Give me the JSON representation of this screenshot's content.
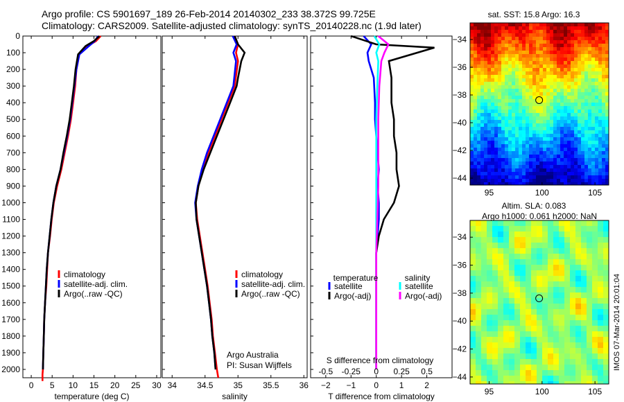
{
  "header": {
    "line1": "Argo profile: CS 5901697_189 26-Feb-2014 20140302_233 38.372S 99.725E",
    "line2": "Climatology: CARS2009. Satellite-adjusted climatology: synTS_20140228.nc (1.9d later)"
  },
  "colors": {
    "climatology": "#ff0000",
    "satellite": "#0000ff",
    "argo": "#000000",
    "sal_satellite": "#00ffff",
    "sal_argo": "#ff00ff"
  },
  "chart_data": [
    {
      "type": "line",
      "id": "temperature",
      "xlabel": "temperature (deg C)",
      "ylabel": "",
      "xlim": [
        -2,
        31
      ],
      "ylim": [
        0,
        2050
      ],
      "y_reversed": true,
      "xticks": [
        0,
        5,
        10,
        15,
        20,
        25,
        30
      ],
      "yticks": [
        0,
        100,
        200,
        300,
        400,
        500,
        600,
        700,
        800,
        900,
        1000,
        1100,
        1200,
        1300,
        1400,
        1500,
        1600,
        1700,
        1800,
        1900,
        2000
      ],
      "legend": [
        "climatology",
        "satellite-adj. clim.",
        "Argo(..raw -QC)"
      ],
      "series": [
        {
          "name": "climatology",
          "color": "climatology",
          "x": [
            16.6,
            15.5,
            13.5,
            11.5,
            10.8,
            10.5,
            10.0,
            9.5,
            8.8,
            8.0,
            7.2,
            6.2,
            5.4,
            4.9,
            4.5,
            4.0,
            3.8,
            3.6,
            3.3,
            3.1,
            3.0,
            2.9,
            2.8,
            2.7,
            2.7
          ],
          "y": [
            0,
            30,
            60,
            110,
            200,
            300,
            400,
            500,
            600,
            700,
            800,
            900,
            1000,
            1100,
            1200,
            1300,
            1400,
            1500,
            1600,
            1700,
            1800,
            1900,
            2000,
            2030,
            2070
          ]
        },
        {
          "name": "satellite-adj. clim.",
          "color": "satellite",
          "x": [
            16.0,
            15.2,
            13.8,
            11.5,
            10.8,
            10.3,
            9.8,
            9.3,
            8.6,
            7.8,
            7.0,
            6.0,
            5.3,
            4.8,
            4.4,
            4.0,
            3.7,
            3.5,
            3.3,
            3.1,
            3.0,
            2.9,
            2.8
          ],
          "y": [
            0,
            30,
            60,
            110,
            200,
            300,
            400,
            500,
            600,
            700,
            800,
            900,
            1000,
            1100,
            1200,
            1300,
            1400,
            1500,
            1600,
            1700,
            1800,
            1900,
            2000
          ]
        },
        {
          "name": "Argo(..raw -QC)",
          "color": "argo",
          "x": [
            16.3,
            15.0,
            13.0,
            11.2,
            10.6,
            10.2,
            9.7,
            9.2,
            8.5,
            7.7,
            7.0,
            6.0,
            5.3,
            4.8,
            4.4,
            4.0,
            3.7,
            3.5,
            3.3,
            3.1,
            3.0,
            2.9,
            2.8
          ],
          "y": [
            0,
            30,
            60,
            110,
            200,
            300,
            400,
            500,
            600,
            700,
            800,
            900,
            1000,
            1100,
            1200,
            1300,
            1400,
            1500,
            1600,
            1700,
            1800,
            1900,
            2000
          ]
        }
      ]
    },
    {
      "type": "line",
      "id": "salinity",
      "xlabel": "salinity",
      "ylabel": "",
      "xlim": [
        33.85,
        36.05
      ],
      "ylim": [
        0,
        2050
      ],
      "y_reversed": true,
      "xticks": [
        34,
        34.5,
        35,
        35.5,
        36
      ],
      "xticklabels": [
        "34",
        "34.5",
        "35",
        "35.5",
        "36"
      ],
      "legend": [
        "climatology",
        "satellite-adj. clim.",
        "Argo(..raw -QC)"
      ],
      "annotation": [
        "Argo Australia",
        "PI: Susan Wijffels"
      ],
      "series": [
        {
          "name": "climatology",
          "color": "climatology",
          "x": [
            34.95,
            35.0,
            34.97,
            35.0,
            34.95,
            34.85,
            34.75,
            34.65,
            34.55,
            34.46,
            34.4,
            34.36,
            34.38,
            34.42,
            34.46,
            34.5,
            34.54,
            34.57,
            34.6,
            34.62,
            34.65,
            34.68,
            34.7
          ],
          "y": [
            0,
            50,
            100,
            150,
            300,
            400,
            500,
            600,
            700,
            800,
            900,
            1000,
            1100,
            1200,
            1300,
            1400,
            1500,
            1600,
            1700,
            1800,
            1900,
            2000,
            2050
          ]
        },
        {
          "name": "satellite-adj. clim.",
          "color": "satellite",
          "x": [
            34.92,
            34.98,
            34.93,
            34.97,
            34.93,
            34.83,
            34.73,
            34.63,
            34.53,
            34.45,
            34.39,
            34.35,
            34.37,
            34.41,
            34.45,
            34.49,
            34.53,
            34.56,
            34.59,
            34.61,
            34.64,
            34.66
          ],
          "y": [
            0,
            50,
            100,
            150,
            300,
            400,
            500,
            600,
            700,
            800,
            900,
            1000,
            1100,
            1200,
            1300,
            1400,
            1500,
            1600,
            1700,
            1800,
            1900,
            2000
          ]
        },
        {
          "name": "Argo(..raw -QC)",
          "color": "argo",
          "x": [
            34.95,
            35.0,
            35.1,
            35.05,
            35.0,
            34.98,
            34.88,
            34.78,
            34.68,
            34.58,
            34.48,
            34.4,
            34.36,
            34.37,
            34.41,
            34.45,
            34.49,
            34.53,
            34.56,
            34.59,
            34.61,
            34.64,
            34.66
          ],
          "y": [
            0,
            50,
            100,
            150,
            250,
            300,
            400,
            500,
            600,
            700,
            800,
            900,
            1000,
            1100,
            1200,
            1300,
            1400,
            1500,
            1600,
            1700,
            1800,
            1900,
            2000
          ]
        }
      ]
    },
    {
      "type": "line",
      "id": "differences",
      "xlabel": "T difference from climatology",
      "x2label": "S difference from climatology",
      "xlim": [
        -2.6,
        3.0
      ],
      "ylim": [
        0,
        2050
      ],
      "y_reversed": true,
      "xticks": [
        -2,
        -1,
        0,
        1,
        2
      ],
      "x2ticklabels": [
        "-0.5",
        "-0.25",
        "0",
        "0.25",
        "0.5"
      ],
      "legend_titles": [
        "temperature",
        "salinity"
      ],
      "legend": [
        "satellite",
        "Argo(-adj)",
        "satellite",
        "Argo(-adj)"
      ],
      "series": [
        {
          "name": "satellite",
          "group": "temperature",
          "color": "satellite",
          "x": [
            -0.5,
            -0.2,
            -0.35,
            -0.3,
            -0.1,
            -0.05,
            -0.05,
            0.0,
            0.05,
            0.1,
            0.05,
            0.1,
            0.1,
            0.05,
            0.0,
            0.0,
            0.0,
            0.0,
            0.0,
            0.0,
            0.0,
            0.0
          ],
          "y": [
            0,
            50,
            100,
            150,
            250,
            400,
            500,
            600,
            700,
            800,
            900,
            1000,
            1100,
            1200,
            1300,
            1400,
            1500,
            1600,
            1700,
            1800,
            1900,
            2000
          ]
        },
        {
          "name": "Argo(-adj)",
          "group": "temperature",
          "color": "argo",
          "x": [
            -1.0,
            0.0,
            2.3,
            0.5,
            0.6,
            0.6,
            0.7,
            0.7,
            0.8,
            0.8,
            0.9,
            0.7,
            0.3,
            0.1,
            0.0,
            0.0,
            0.0,
            0.0,
            0.0,
            0.0,
            0.0,
            0.0
          ],
          "y": [
            0,
            50,
            70,
            150,
            250,
            400,
            500,
            600,
            700,
            800,
            900,
            1000,
            1100,
            1200,
            1300,
            1400,
            1500,
            1600,
            1700,
            1800,
            1900,
            2000
          ]
        },
        {
          "name": "satellite",
          "group": "salinity",
          "color": "sal_satellite",
          "x": [
            -0.02,
            0.03,
            0.0,
            0.02,
            0.01,
            0.0,
            0.0,
            0.0,
            0.0,
            0.0,
            0.0,
            0.0,
            0.0
          ],
          "x_scale": "salinity",
          "y": [
            0,
            50,
            100,
            150,
            300,
            500,
            700,
            900,
            1100,
            1300,
            1500,
            1800,
            2000
          ]
        },
        {
          "name": "Argo(-adj)",
          "group": "salinity",
          "color": "sal_argo",
          "x": [
            0.02,
            0.12,
            0.08,
            0.05,
            0.03,
            0.02,
            0.02,
            0.02,
            0.01,
            0.0,
            0.0,
            0.0
          ],
          "x_scale": "salinity",
          "y": [
            0,
            50,
            100,
            150,
            300,
            500,
            700,
            900,
            1100,
            1300,
            1500,
            2000
          ]
        }
      ]
    },
    {
      "type": "heatmap",
      "id": "sst-map",
      "title": "sat. SST: 15.8  Argo: 16.3",
      "xticks": [
        95,
        100,
        105
      ],
      "yticks": [
        -34,
        -36,
        -38,
        -40,
        -42,
        -44
      ],
      "xlim": [
        93.2,
        106.3
      ],
      "ylim": [
        -44.5,
        -32.8
      ],
      "marker": {
        "lon": 99.725,
        "lat": -38.372
      }
    },
    {
      "type": "heatmap",
      "id": "sla-map",
      "title": "Altim. SLA: 0.083",
      "subtitle": "Argo h1000: 0.061 h2000: NaN",
      "xticks": [
        95,
        100,
        105
      ],
      "yticks": [
        -34,
        -36,
        -38,
        -40,
        -42,
        -44
      ],
      "xlim": [
        93.2,
        106.3
      ],
      "ylim": [
        -44.5,
        -32.8
      ],
      "marker": {
        "lon": 99.725,
        "lat": -38.372
      }
    }
  ],
  "side_label": "IMOS 07-Mar-2014 20:01:04"
}
